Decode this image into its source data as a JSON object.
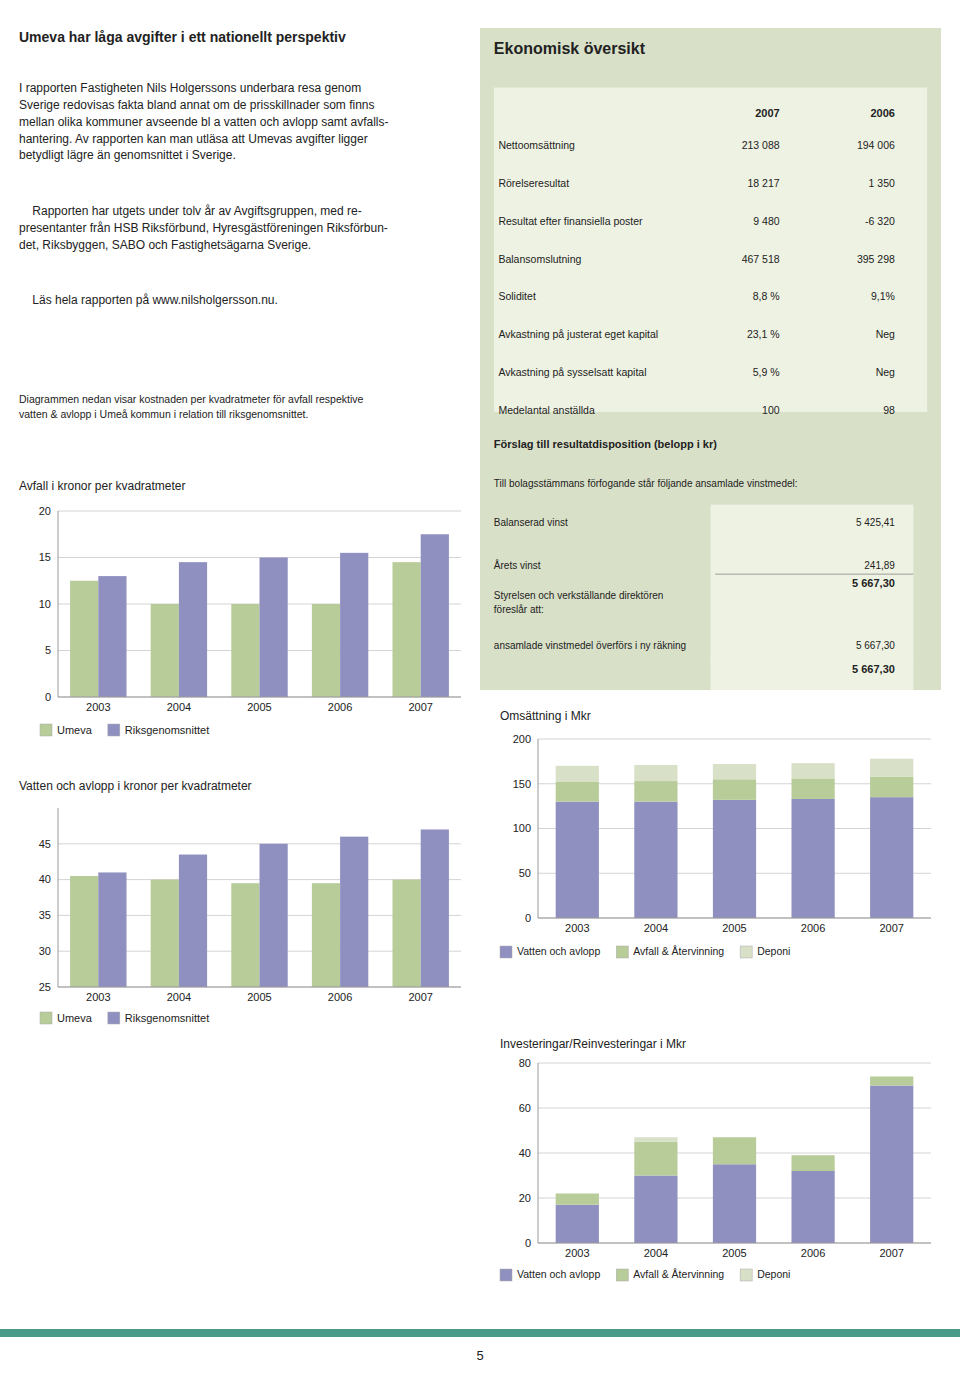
{
  "page": {
    "title": "Umeva har låga avgifter i ett nationellt perspektiv",
    "body": [
      "I rapporten Fastigheten Nils Holgerssons underbara resa genom\nSverige redovisas fakta bland annat om de prisskillnader som finns\nmellan olika kommuner avseende bl a vatten och avlopp samt avfalls-\nhantering. Av rapporten kan man utläsa att Umevas avgifter ligger\nbetydligt lägre än genomsnittet i Sverige.",
      "    Rapporten har utgets under tolv år av Avgiftsgruppen, med re-\npresentanter från HSB Riksförbund, Hyresgästföreningen Riksförbun-\ndet, Riksbyggen, SABO och Fastighetsägarna Sverige.",
      "    Läs hela rapporten på www.nilsholgersson.nu."
    ],
    "caption": "Diagrammen nedan visar kostnaden per kvadratmeter för avfall respektive\nvatten & avlopp i Umeå kommun i relation till riksgenomsnittet.",
    "panel": {
      "title": "Ekonomisk översikt",
      "table": {
        "columns": [
          "2007",
          "2006"
        ],
        "rows": [
          [
            "Nettoomsättning",
            "213 088",
            "194 006"
          ],
          [
            "Rörelseresultat",
            "18 217",
            "1 350"
          ],
          [
            "Resultat efter finansiella poster",
            "9 480",
            "-6 320"
          ],
          [
            "Balansomslutning",
            "467 518",
            "395 298"
          ],
          [
            "Soliditet",
            "8,8 %",
            "9,1%"
          ],
          [
            "Avkastning på justerat eget kapital",
            "23,1 %",
            "Neg"
          ],
          [
            "Avkastning på sysselsatt kapital",
            "5,9 %",
            "Neg"
          ],
          [
            "Medelantal anställda",
            "100",
            "98"
          ]
        ]
      },
      "disposition": {
        "title": "Förslag till resultatdisposition (belopp i kr)",
        "text": "Till bolagsstämmans förfogande står följande ansamlade vinstmedel:",
        "rows": [
          [
            "Balanserad vinst",
            "5 425,41"
          ],
          [
            "Årets vinst",
            "241,89"
          ]
        ],
        "total": "5 667,30",
        "proposal": "Styrelsen och verkställande direktören\nföreslår att:",
        "transfer": [
          "ansamlade vinstmedel överförs i ny räkning",
          "5 667,30"
        ],
        "final": "5 667,30"
      }
    },
    "footer": "5"
  },
  "chart_data": [
    {
      "type": "bar",
      "title": "Avfall i kronor per kvadratmeter",
      "categories": [
        "2003",
        "2004",
        "2005",
        "2006",
        "2007"
      ],
      "series": [
        {
          "name": "Umeva",
          "color": "#b8cc99",
          "values": [
            12.5,
            10.0,
            10.0,
            10.0,
            14.5
          ]
        },
        {
          "name": "Riksgenomsnittet",
          "color": "#9090c0",
          "values": [
            13.0,
            14.5,
            15.0,
            15.5,
            17.5
          ]
        }
      ],
      "ylim": [
        0,
        20
      ],
      "yticks": [
        0,
        5,
        10,
        15,
        20
      ],
      "grid": true,
      "legend": "bottom"
    },
    {
      "type": "bar",
      "title": "Vatten och avlopp i kronor per kvadratmeter",
      "categories": [
        "2003",
        "2004",
        "2005",
        "2006",
        "2007"
      ],
      "series": [
        {
          "name": "Umeva",
          "color": "#b8cc99",
          "values": [
            40.5,
            40.0,
            39.5,
            39.5,
            40.0
          ]
        },
        {
          "name": "Riksgenomsnittet",
          "color": "#9090c0",
          "values": [
            41.0,
            43.5,
            45.0,
            46.0,
            47.0
          ]
        }
      ],
      "ylim": [
        25,
        50
      ],
      "yticks": [
        25,
        30,
        35,
        40,
        45
      ],
      "grid": true,
      "legend": "bottom"
    },
    {
      "type": "bar",
      "title": "Omsättning i Mkr",
      "stacked": true,
      "categories": [
        "2003",
        "2004",
        "2005",
        "2006",
        "2007"
      ],
      "series": [
        {
          "name": "Vatten och avlopp",
          "color": "#9090c0",
          "values": [
            130,
            130,
            132,
            133,
            135
          ]
        },
        {
          "name": "Avfall & Återvinning",
          "color": "#b8cc99",
          "values": [
            22,
            23,
            23,
            23,
            23
          ]
        },
        {
          "name": "Deponi",
          "color": "#d9e0c8",
          "values": [
            18,
            18,
            17,
            17,
            20
          ]
        }
      ],
      "ylim": [
        0,
        200
      ],
      "yticks": [
        0,
        50,
        100,
        150,
        200
      ],
      "grid": true,
      "legend": "bottom"
    },
    {
      "type": "bar",
      "title": "Investeringar/Reinvesteringar i Mkr",
      "stacked": true,
      "categories": [
        "2003",
        "2004",
        "2005",
        "2006",
        "2007"
      ],
      "series": [
        {
          "name": "Vatten och avlopp",
          "color": "#9090c0",
          "values": [
            17,
            30,
            35,
            32,
            70
          ]
        },
        {
          "name": "Avfall & Återvinning",
          "color": "#b8cc99",
          "values": [
            5,
            15,
            12,
            7,
            4
          ]
        },
        {
          "name": "Deponi",
          "color": "#d9e0c8",
          "values": [
            0,
            2,
            0,
            0,
            0
          ]
        }
      ],
      "ylim": [
        0,
        80
      ],
      "yticks": [
        0,
        20,
        40,
        60,
        80
      ],
      "grid": true,
      "legend": "bottom"
    }
  ]
}
